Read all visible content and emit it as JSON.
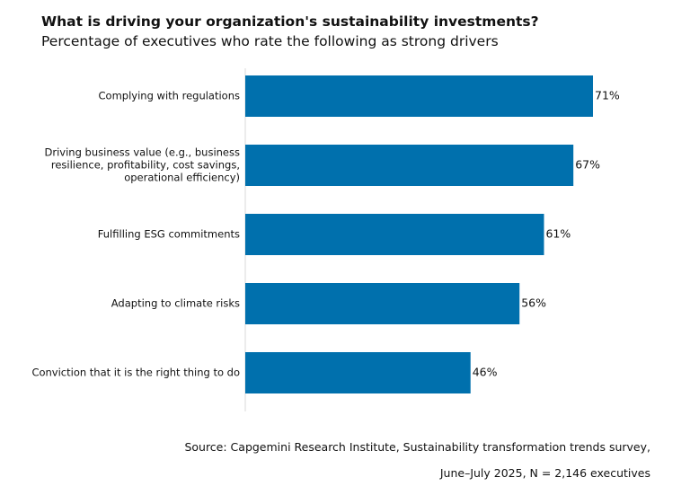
{
  "title": "What is driving your organization's sustainability investments?",
  "subtitle": "Percentage of executives who rate the following as strong drivers",
  "source_line1": "Source: Capgemini Research Institute, Sustainability transformation trends survey,",
  "source_line2": "June–July 2025, N = 2,146 executives",
  "colors": {
    "bar": "#0070AD",
    "axis": "#d9d9d9"
  },
  "chart_data": {
    "type": "bar",
    "orientation": "horizontal",
    "title": "What is driving your organization's sustainability investments?",
    "subtitle": "Percentage of executives who rate the following as strong drivers",
    "categories": [
      [
        "Complying with regulations"
      ],
      [
        "Driving business value (e.g., business",
        "resilience, profitability, cost savings,",
        "operational efficiency)"
      ],
      [
        "Fulfilling ESG commitments"
      ],
      [
        "Adapting to climate risks"
      ],
      [
        "Conviction that it is the right thing to do"
      ]
    ],
    "values": [
      71,
      67,
      61,
      56,
      46
    ],
    "value_labels": [
      "71%",
      "67%",
      "61%",
      "56%",
      "46%"
    ],
    "xlim": [
      0,
      100
    ],
    "grid": false,
    "legend": "none"
  }
}
